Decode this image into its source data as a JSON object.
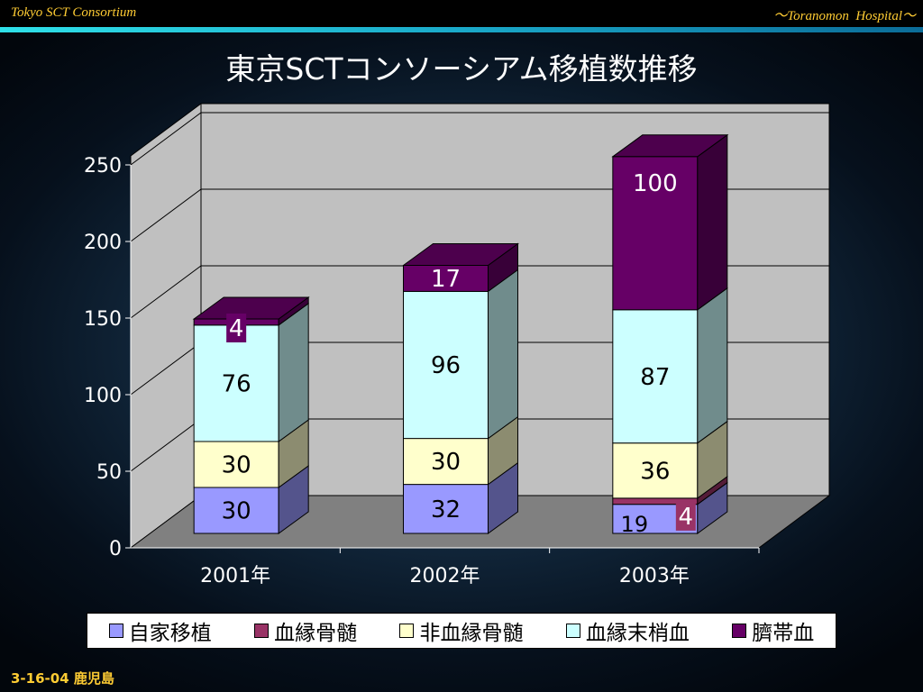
{
  "header": {
    "left_text": "Tokyo SCT Consortium",
    "right_text": "～Toranomon  Hospital～"
  },
  "footer": {
    "left_text": "3-16-04 鹿児島"
  },
  "colors": {
    "title": "#ffffff",
    "header_text": "#ffcc33",
    "accent_line": "#2fe0e8"
  },
  "chart_data": {
    "type": "bar",
    "stacked": true,
    "three_d": true,
    "title": "東京SCTコンソーシアム移植数推移",
    "xlabel": "",
    "ylabel": "",
    "ylim": [
      0,
      250
    ],
    "yticks": [
      0,
      50,
      100,
      150,
      200,
      250
    ],
    "grid": true,
    "legend_position": "bottom",
    "categories": [
      "2001年",
      "2002年",
      "2003年"
    ],
    "series": [
      {
        "name": "自家移植",
        "color": "#9999ff",
        "values": [
          30,
          32,
          19
        ]
      },
      {
        "name": "血縁骨髄",
        "color": "#993366",
        "values": [
          0,
          0,
          4
        ]
      },
      {
        "name": "非血縁骨髄",
        "color": "#ffffcc",
        "values": [
          30,
          30,
          36
        ]
      },
      {
        "name": "血縁末梢血",
        "color": "#ccffff",
        "values": [
          76,
          96,
          87
        ]
      },
      {
        "name": "臍帯血",
        "color": "#660066",
        "values": [
          4,
          17,
          100
        ]
      }
    ],
    "data_labels": [
      [
        "30",
        "",
        "30",
        "76",
        "4"
      ],
      [
        "32",
        "",
        "30",
        "96",
        "17"
      ],
      [
        "19",
        "4",
        "36",
        "87",
        "100"
      ]
    ]
  }
}
